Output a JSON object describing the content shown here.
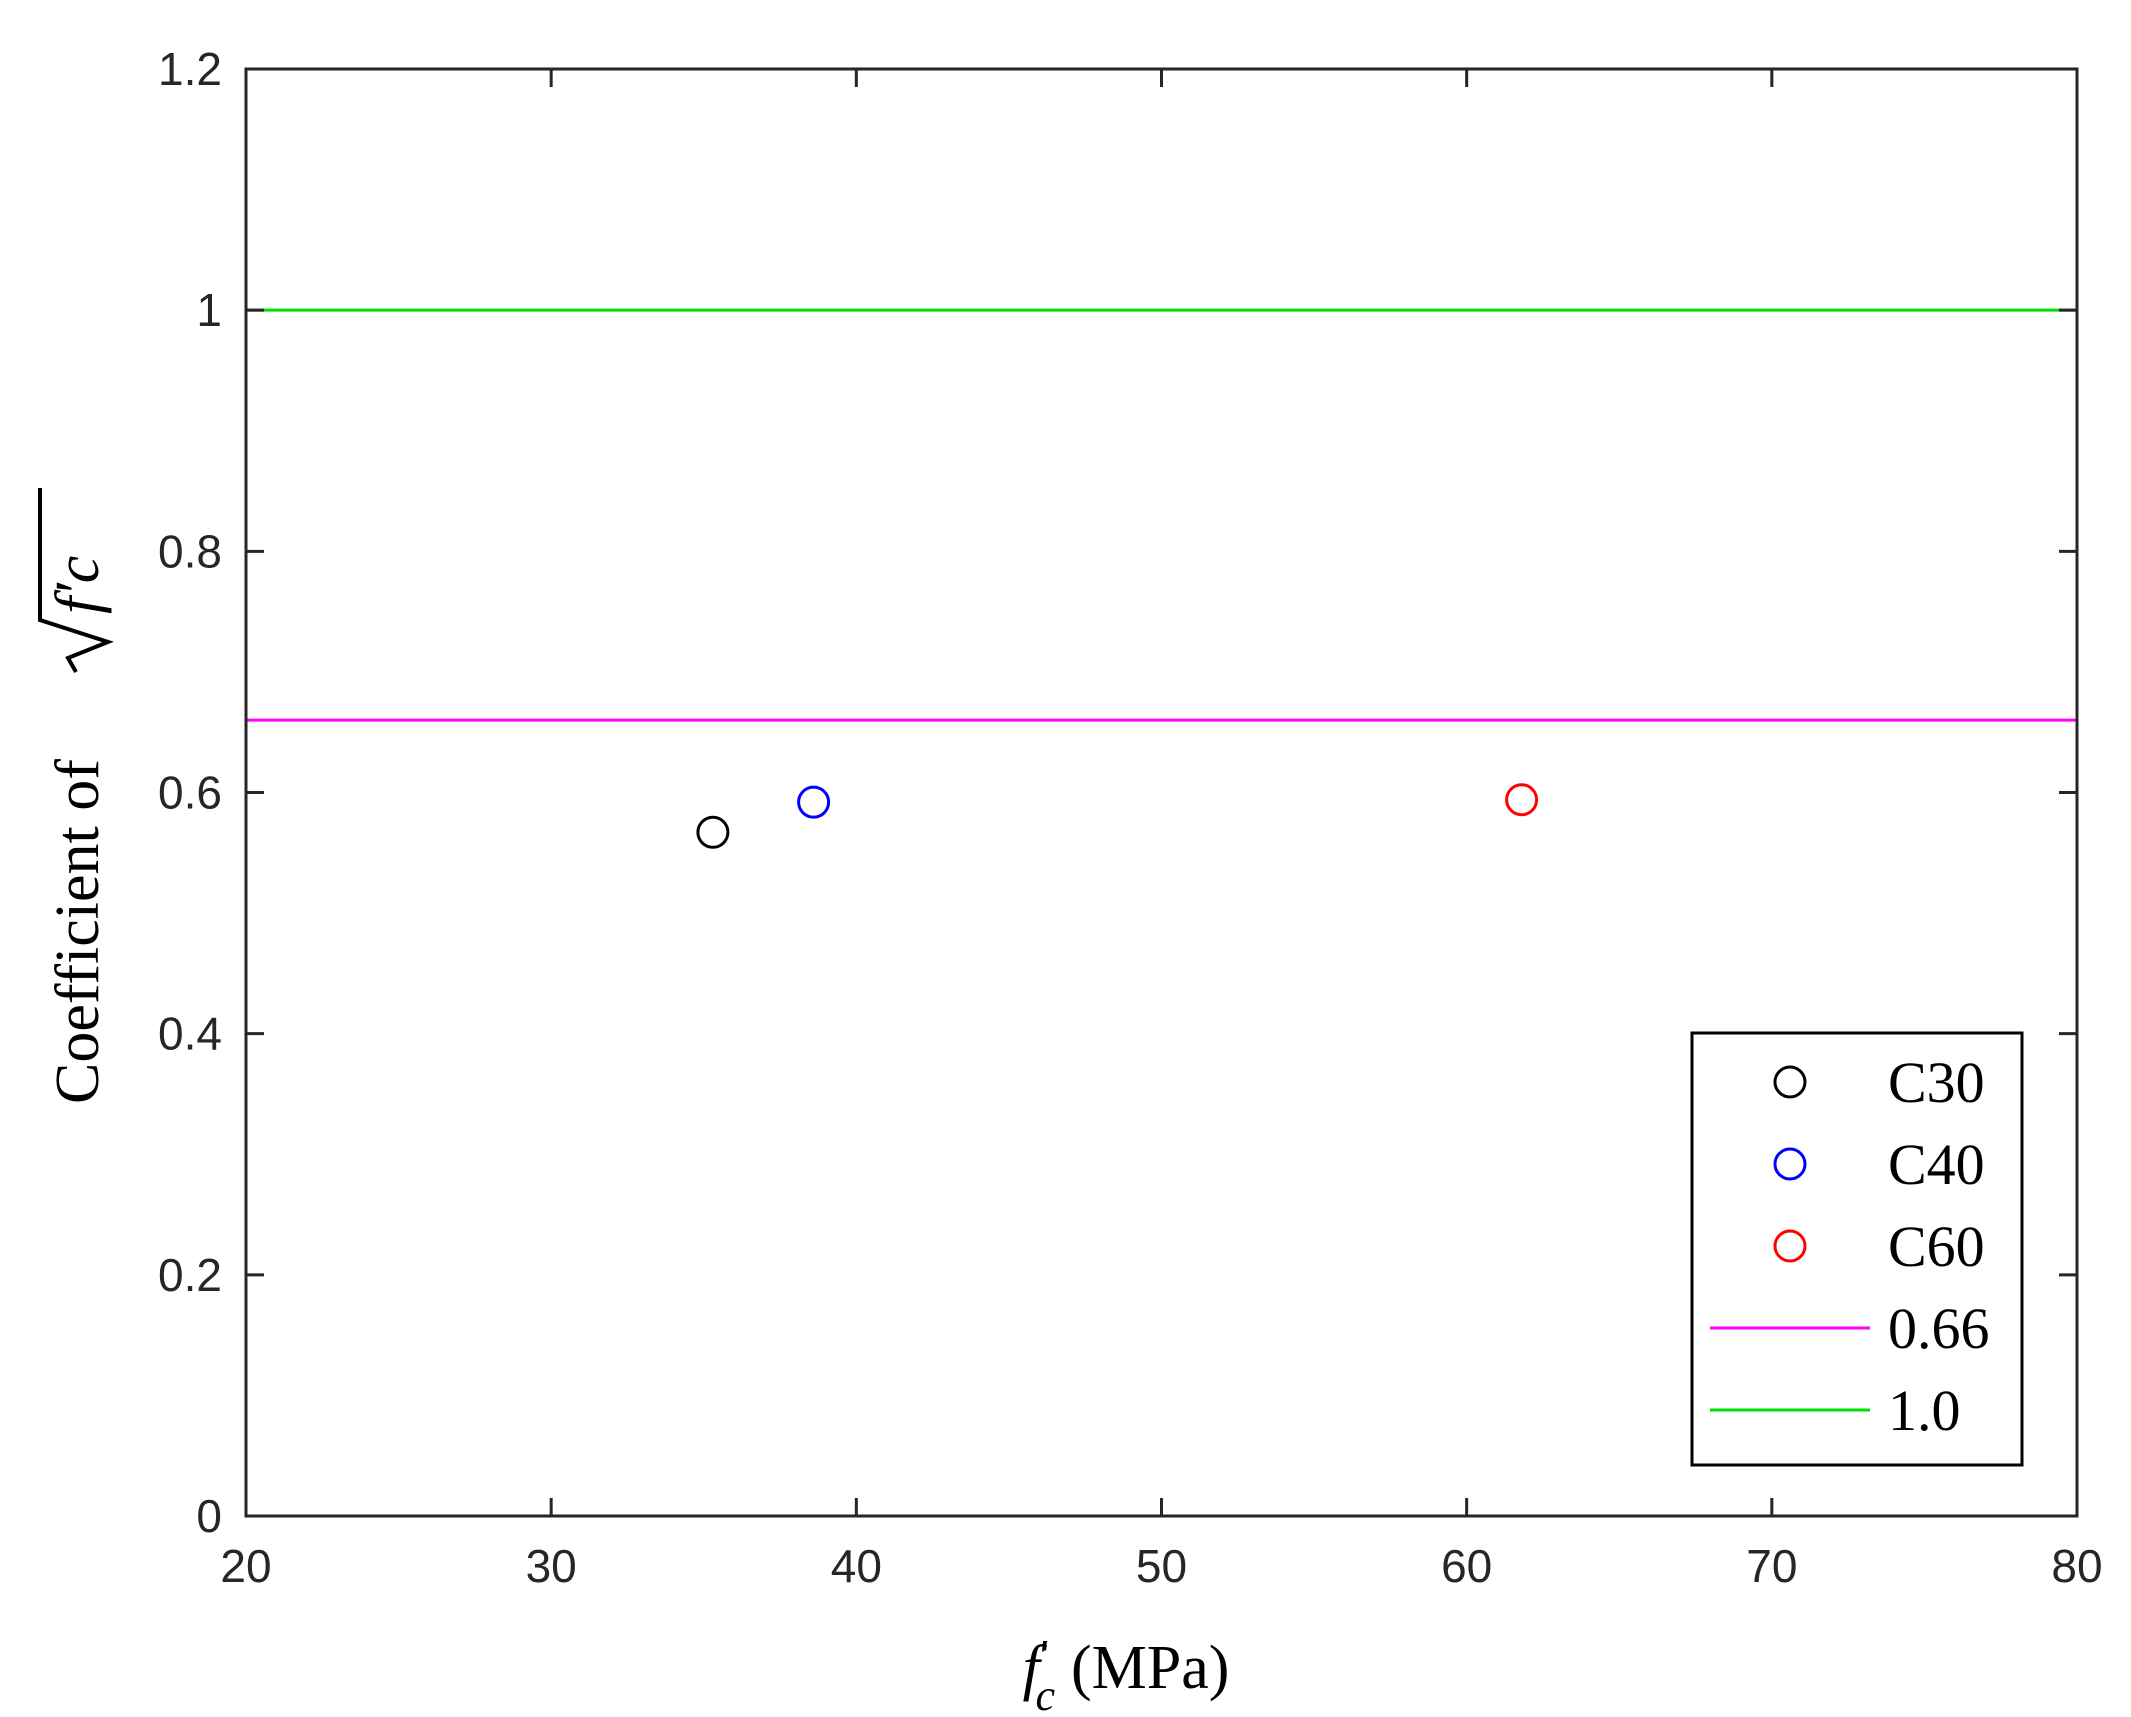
{
  "chart_data": {
    "type": "scatter",
    "xlabel": {
      "main": "f",
      "prime": "′",
      "sub": "c",
      "unit": "(MPa)"
    },
    "ylabel": {
      "prefix": "Coefficient of",
      "radicand": "f′c"
    },
    "xlim": [
      20,
      80
    ],
    "ylim": [
      0,
      1.2
    ],
    "xticks": [
      20,
      30,
      40,
      50,
      60,
      70,
      80
    ],
    "yticks": [
      0,
      0.2,
      0.4,
      0.6,
      0.8,
      1,
      1.2
    ],
    "xtick_labels": [
      "20",
      "30",
      "40",
      "50",
      "60",
      "70",
      "80"
    ],
    "ytick_labels": [
      "0",
      "0.2",
      "0.4",
      "0.6",
      "0.8",
      "1",
      "1.2"
    ],
    "grid": false,
    "legend_position": "bottom-right",
    "series": [
      {
        "name": "C30",
        "kind": "marker",
        "color": "#000000",
        "points": [
          {
            "x": 35.3,
            "y": 0.567
          }
        ]
      },
      {
        "name": "C40",
        "kind": "marker",
        "color": "#0000ff",
        "points": [
          {
            "x": 38.6,
            "y": 0.592
          }
        ]
      },
      {
        "name": "C60",
        "kind": "marker",
        "color": "#ff0000",
        "points": [
          {
            "x": 61.8,
            "y": 0.594
          }
        ]
      },
      {
        "name": "0.66",
        "kind": "hline",
        "color": "#ff00ff",
        "y": 0.66
      },
      {
        "name": "1.0",
        "kind": "hline",
        "color": "#00dd00",
        "y": 1.0
      }
    ]
  }
}
